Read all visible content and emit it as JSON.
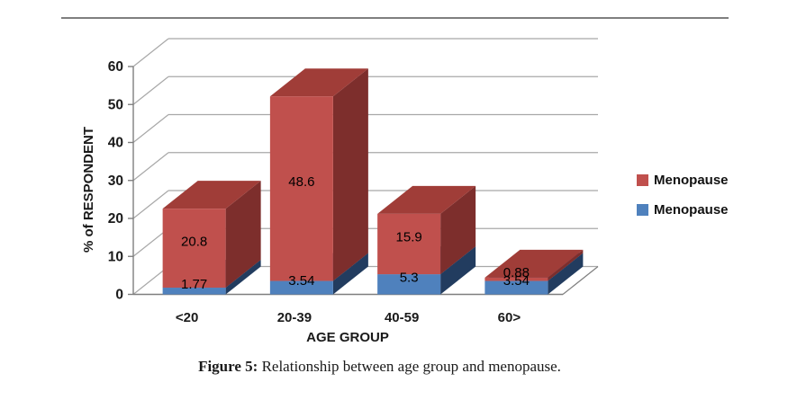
{
  "page": {
    "caption_prefix": "Figure 5: ",
    "caption_rest": "Relationship between age group and menopause."
  },
  "chart_data": {
    "type": "bar",
    "subtype": "3d-stacked-column",
    "title": "",
    "xlabel": "AGE GROUP",
    "ylabel": "% of RESPONDENT",
    "categories": [
      "<20",
      "20-39",
      "40-59",
      "60>"
    ],
    "series": [
      {
        "name": "Menopause",
        "color": "#4F81BD",
        "color_top": "#3A6191",
        "color_side": "#223C5F",
        "values": [
          1.77,
          3.54,
          5.3,
          3.54
        ],
        "labels": [
          "1.77",
          "3.54",
          "5.3",
          "3.54"
        ]
      },
      {
        "name": "Menopause",
        "color": "#C0504D",
        "color_top": "#A03D38",
        "color_side": "#7D2E2C",
        "values": [
          20.8,
          48.6,
          15.9,
          0.88
        ],
        "labels": [
          "20.8",
          "48.6",
          "15.9",
          "0.88"
        ]
      }
    ],
    "ylim": [
      0,
      60
    ],
    "ytick_step": 10,
    "yticks": [
      "0",
      "10",
      "20",
      "30",
      "40",
      "50",
      "60"
    ],
    "grid": true,
    "legend_position": "right",
    "legend": [
      {
        "label": "Menopause",
        "color": "#C0504D"
      },
      {
        "label": "Menopause",
        "color": "#4F81BD"
      }
    ]
  },
  "colors": {
    "gridline": "#A8A8A8",
    "axis": "#7F7F7F",
    "top_rule": "#7F7F7F",
    "label_text": "#000000"
  }
}
